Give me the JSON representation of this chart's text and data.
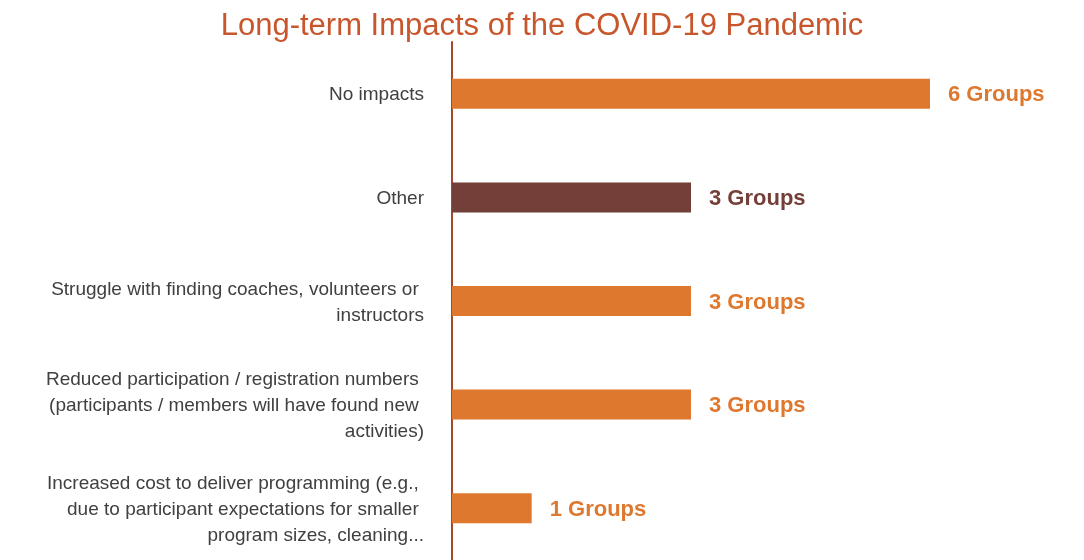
{
  "chart_data": {
    "type": "bar",
    "orientation": "horizontal",
    "title": "Long-term Impacts of the COVID-19 Pandemic",
    "categories": [
      "No impacts",
      "Other",
      "Struggle with finding coaches, volunteers or instructors",
      "Reduced participation / registration numbers (participants / members will have found new activities)",
      "Increased cost to deliver programming (e.g., due to participant expectations for smaller program sizes, cleaning..."
    ],
    "values": [
      6,
      3,
      3,
      3,
      1
    ],
    "value_labels": [
      "6 Groups",
      "3 Groups",
      "3 Groups",
      "3 Groups",
      "1 Groups"
    ],
    "colors": [
      "#de782e",
      "#733f38",
      "#de782e",
      "#de782e",
      "#de782e"
    ],
    "tick_labels": "y",
    "grid": false
  }
}
